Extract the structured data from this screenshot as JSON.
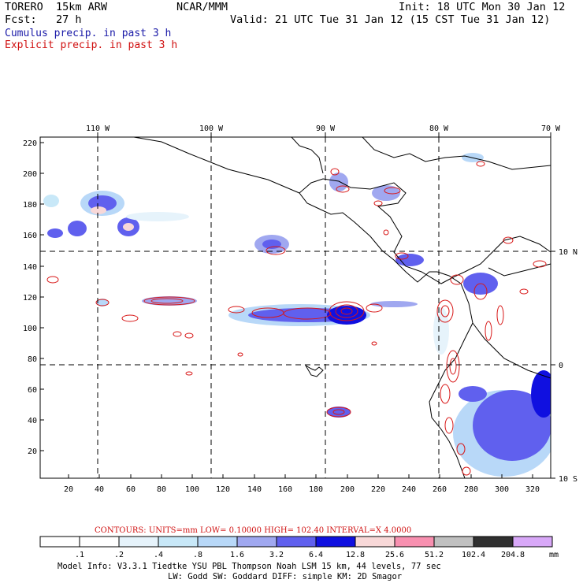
{
  "header": {
    "model": "TORERO  15km ARW",
    "center": "NCAR/MMM",
    "init": "Init: 18 UTC Mon 30 Jan 12",
    "fcst": "Fcst:   27 h",
    "valid": "Valid: 21 UTC Tue 31 Jan 12 (15 CST Tue 31 Jan 12)",
    "field1": "Cumulus precip. in past 3 h",
    "field2": "Explicit precip. in past 3 h"
  },
  "map": {
    "top_lon_labels": [
      "110 W",
      "100 W",
      "90 W",
      "80 W",
      "70 W"
    ],
    "right_lat_labels": [
      "10 N",
      "0",
      "10 S"
    ],
    "y_ticks": [
      "220",
      "200",
      "180",
      "160",
      "140",
      "120",
      "100",
      "80",
      "60",
      "40",
      "20"
    ],
    "x_ticks": [
      "20",
      "40",
      "60",
      "80",
      "100",
      "120",
      "140",
      "160",
      "180",
      "200",
      "220",
      "240",
      "260",
      "280",
      "300",
      "320"
    ],
    "colors": {
      "coast": "#000000",
      "contour": "#d81818",
      "grid": "#000000"
    }
  },
  "contours_line": "CONTOURS:  UNITS=mm  LOW= 0.10000      HIGH=  102.40      INTERVAL=X  4.0000",
  "colorbar": {
    "labels": [
      ".1",
      ".2",
      ".4",
      ".8",
      "1.6",
      "3.2",
      "6.4",
      "12.8",
      "25.6",
      "51.2",
      "102.4",
      "204.8"
    ],
    "unit": "mm",
    "colors": [
      "#ffffff",
      "#ffffff",
      "#e6f3fb",
      "#c8e8f8",
      "#b8d8f8",
      "#a0a8f0",
      "#6060ee",
      "#1010e0",
      "#f8d8d8",
      "#f890b0",
      "#c0c0c0",
      "#303030",
      "#d8a8f8"
    ]
  },
  "footer": {
    "line1": "Model Info: V3.3.1    Tiedtke YSU PBL  Thompson    Noah LSM  15 km,   44 levels,   77 sec",
    "line2": "LW: Godd SW: Goddard DIFF: simple KM: 2D Smagor"
  }
}
